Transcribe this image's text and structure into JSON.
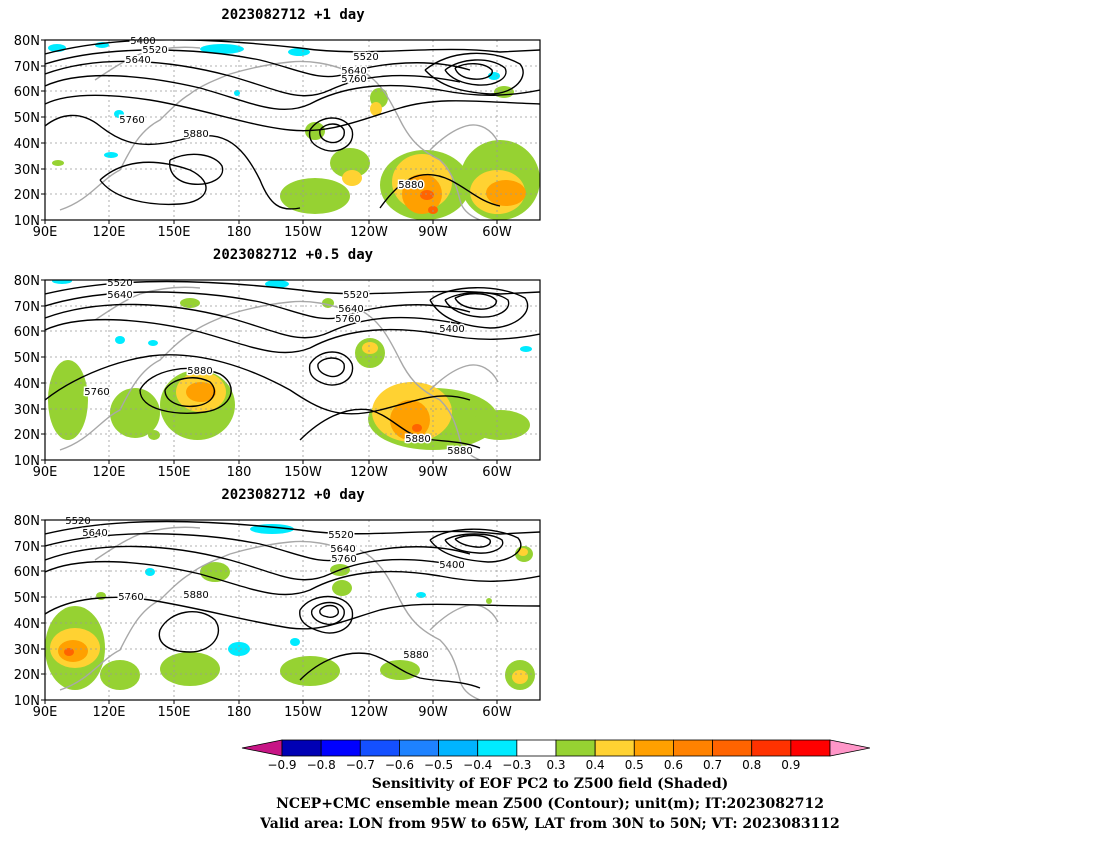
{
  "panels": [
    {
      "title": "2023082712  +1 day",
      "contour_labels": [
        "5400",
        "5520",
        "5640",
        "5760",
        "5880",
        "5520",
        "5640",
        "5760",
        "5880"
      ]
    },
    {
      "title": "2023082712  +0.5 day",
      "contour_labels": [
        "5520",
        "5640",
        "5760",
        "5880",
        "5520",
        "5640",
        "5760",
        "5400",
        "5880",
        "5880"
      ]
    },
    {
      "title": "2023082712  +0 day",
      "contour_labels": [
        "5520",
        "5640",
        "5760",
        "5880",
        "5520",
        "5640",
        "5760",
        "5400",
        "5880"
      ]
    }
  ],
  "axes": {
    "lat_ticks": [
      "10N",
      "20N",
      "30N",
      "40N",
      "50N",
      "60N",
      "70N",
      "80N"
    ],
    "lon_ticks": [
      "90E",
      "120E",
      "150E",
      "180",
      "150W",
      "120W",
      "90W",
      "60W"
    ]
  },
  "colorbar": {
    "labels": [
      "−0.9",
      "−0.8",
      "−0.7",
      "−0.6",
      "−0.5",
      "−0.4",
      "−0.3",
      "0.3",
      "0.4",
      "0.5",
      "0.6",
      "0.7",
      "0.8",
      "0.9"
    ],
    "colors": [
      "#c71585",
      "#0000b4",
      "#0000ff",
      "#1450ff",
      "#1e82ff",
      "#00b4ff",
      "#00ebff",
      "#ffffff",
      "#96d232",
      "#ffd232",
      "#ffa000",
      "#ff8200",
      "#ff6400",
      "#ff3200",
      "#ff0000",
      "#ff96c8"
    ]
  },
  "captions": {
    "line1": "Sensitivity of EOF PC2 to Z500 field (Shaded)",
    "line2": "NCEP+CMC ensemble mean Z500 (Contour); unit(m); IT:2023082712",
    "line3": "Valid area: LON from 95W to 65W, LAT from 30N to 50N; VT: 2023083112"
  }
}
